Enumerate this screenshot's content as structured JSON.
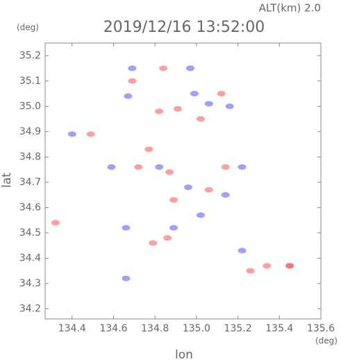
{
  "chart_data": {
    "type": "scatter",
    "header": "ALT(km) 2.0",
    "title": "2019/12/16 13:52:00",
    "y_unit": "(deg)",
    "x_unit": "(deg)",
    "xlabel": "lon",
    "ylabel": "lat",
    "xlim": [
      134.27,
      135.6
    ],
    "ylim": [
      34.16,
      35.25
    ],
    "xticks": [
      134.4,
      134.6,
      134.8,
      {
        "value": 135,
        "label": "135.0"
      },
      135.2,
      135.4,
      135.6
    ],
    "yticks": [
      34.2,
      34.3,
      34.4,
      34.5,
      34.6,
      34.7,
      34.8,
      34.9,
      {
        "value": 35,
        "label": "35.0"
      },
      35.1,
      35.2
    ],
    "x": [
      134.69,
      134.84,
      134.97,
      134.69,
      134.67,
      134.99,
      134.91,
      135.06,
      135.12,
      135.16,
      135.02,
      134.82,
      134.49,
      134.4,
      134.77,
      134.59,
      134.82,
      134.72,
      134.87,
      135.14,
      135.22,
      134.96,
      135.06,
      135.14,
      134.89,
      135.02,
      134.89,
      134.86,
      134.79,
      134.32,
      134.66,
      135.22,
      135.26,
      135.34,
      135.45,
      134.66
    ],
    "values": [
      35.15,
      35.15,
      35.15,
      35.1,
      35.04,
      35.05,
      34.99,
      35.01,
      35.05,
      35.0,
      34.95,
      34.98,
      34.89,
      34.89,
      34.83,
      34.76,
      34.76,
      34.76,
      34.74,
      34.76,
      34.76,
      34.68,
      34.67,
      34.65,
      34.63,
      34.57,
      34.52,
      34.48,
      34.46,
      34.54,
      34.32,
      34.43,
      34.35,
      34.37,
      34.37,
      34.52
    ],
    "colors": [
      "#7f7fff",
      "#ff7f7f",
      "#7f7fff",
      "#ff7f7f",
      "#7f7fff",
      "#7f7fff",
      "#ff7f7f",
      "#7f7fff",
      "#ff7f7f",
      "#7f7fff",
      "#ff7f7f",
      "#ff7f7f",
      "#ff7f7f",
      "#7f7fff",
      "#ff7f7f",
      "#7f7fff",
      "#7f7fff",
      "#ff7f7f",
      "#ff7f7f",
      "#ff7f7f",
      "#7f7fff",
      "#7f7fff",
      "#ff7f7f",
      "#7f7fff",
      "#ff7f7f",
      "#7f7fff",
      "#7f7fff",
      "#ff7f7f",
      "#ff7f7f",
      "#ff7f7f",
      "#7f7fff",
      "#7f7fff",
      "#ff7f7f",
      "#ff7f7f",
      "#ff4040",
      "#7f7fff"
    ]
  }
}
